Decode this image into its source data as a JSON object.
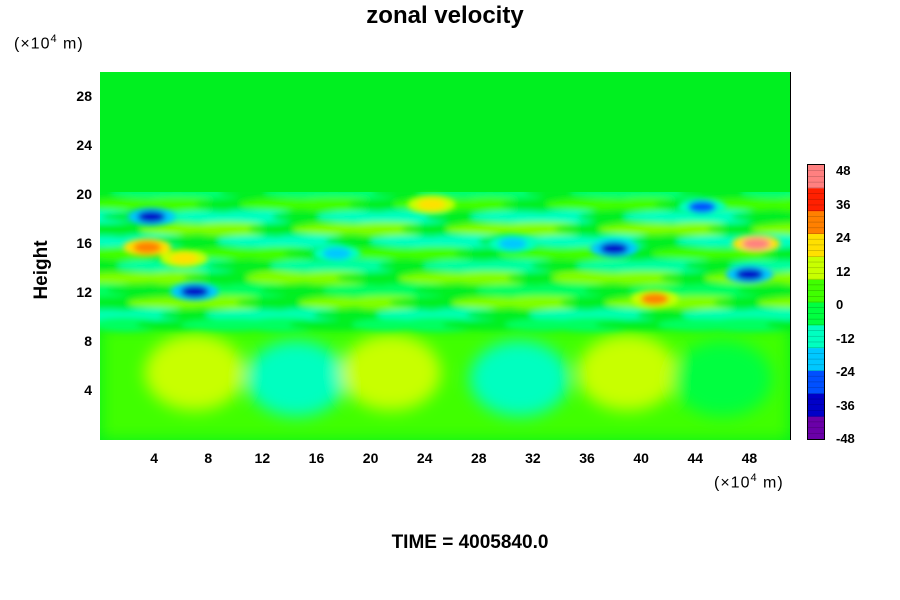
{
  "chart_data": {
    "type": "heatmap",
    "title": "zonal velocity",
    "ylabel": "Height",
    "y_unit": {
      "prefix": "(×10",
      "exp": "4",
      "suffix": " m)"
    },
    "x_unit": {
      "prefix": "(×10",
      "exp": "4",
      "suffix": " m)"
    },
    "x_ticks": [
      "4",
      "8",
      "12",
      "16",
      "20",
      "24",
      "28",
      "32",
      "36",
      "40",
      "44",
      "48"
    ],
    "y_ticks": [
      "4",
      "8",
      "12",
      "16",
      "20",
      "24",
      "28"
    ],
    "xlim": [
      0,
      51
    ],
    "ylim": [
      0,
      30
    ],
    "colorbar": {
      "ticks": [
        "48",
        "36",
        "24",
        "12",
        "0",
        "-12",
        "-24",
        "-36",
        "-48"
      ],
      "range": [
        -48,
        48
      ],
      "colors": [
        "#6a00a8",
        "#0000c8",
        "#0050ff",
        "#00c8ff",
        "#00ffc0",
        "#00ff40",
        "#40ff00",
        "#c8ff00",
        "#ffe000",
        "#ff8000",
        "#ff2000",
        "#ff8080"
      ]
    },
    "time_label": "TIME = 4005840.0",
    "features": [
      {
        "x": 3.8,
        "y": 18.2,
        "value": -34
      },
      {
        "x": 3.5,
        "y": 15.7,
        "value": 30
      },
      {
        "x": 7.0,
        "y": 12.1,
        "value": -38
      },
      {
        "x": 6.2,
        "y": 14.8,
        "value": 22
      },
      {
        "x": 17.5,
        "y": 15.2,
        "value": -24
      },
      {
        "x": 24.5,
        "y": 19.2,
        "value": 20
      },
      {
        "x": 30.5,
        "y": 16.0,
        "value": -22
      },
      {
        "x": 38.0,
        "y": 15.6,
        "value": -34
      },
      {
        "x": 41.0,
        "y": 11.5,
        "value": 28
      },
      {
        "x": 44.5,
        "y": 19.0,
        "value": -26
      },
      {
        "x": 48.5,
        "y": 16.0,
        "value": 40
      },
      {
        "x": 48.0,
        "y": 13.5,
        "value": -36
      },
      {
        "x": 13.0,
        "y": 13.8,
        "value": 14
      },
      {
        "x": 35.0,
        "y": 13.5,
        "value": 10
      },
      {
        "x": 7.0,
        "y": 5.5,
        "value": 8
      },
      {
        "x": 14.5,
        "y": 5.0,
        "value": -10
      },
      {
        "x": 21.5,
        "y": 5.5,
        "value": 8
      },
      {
        "x": 31.0,
        "y": 5.0,
        "value": -12
      },
      {
        "x": 39.0,
        "y": 5.5,
        "value": 8
      },
      {
        "x": 46.0,
        "y": 5.0,
        "value": -8
      }
    ]
  }
}
